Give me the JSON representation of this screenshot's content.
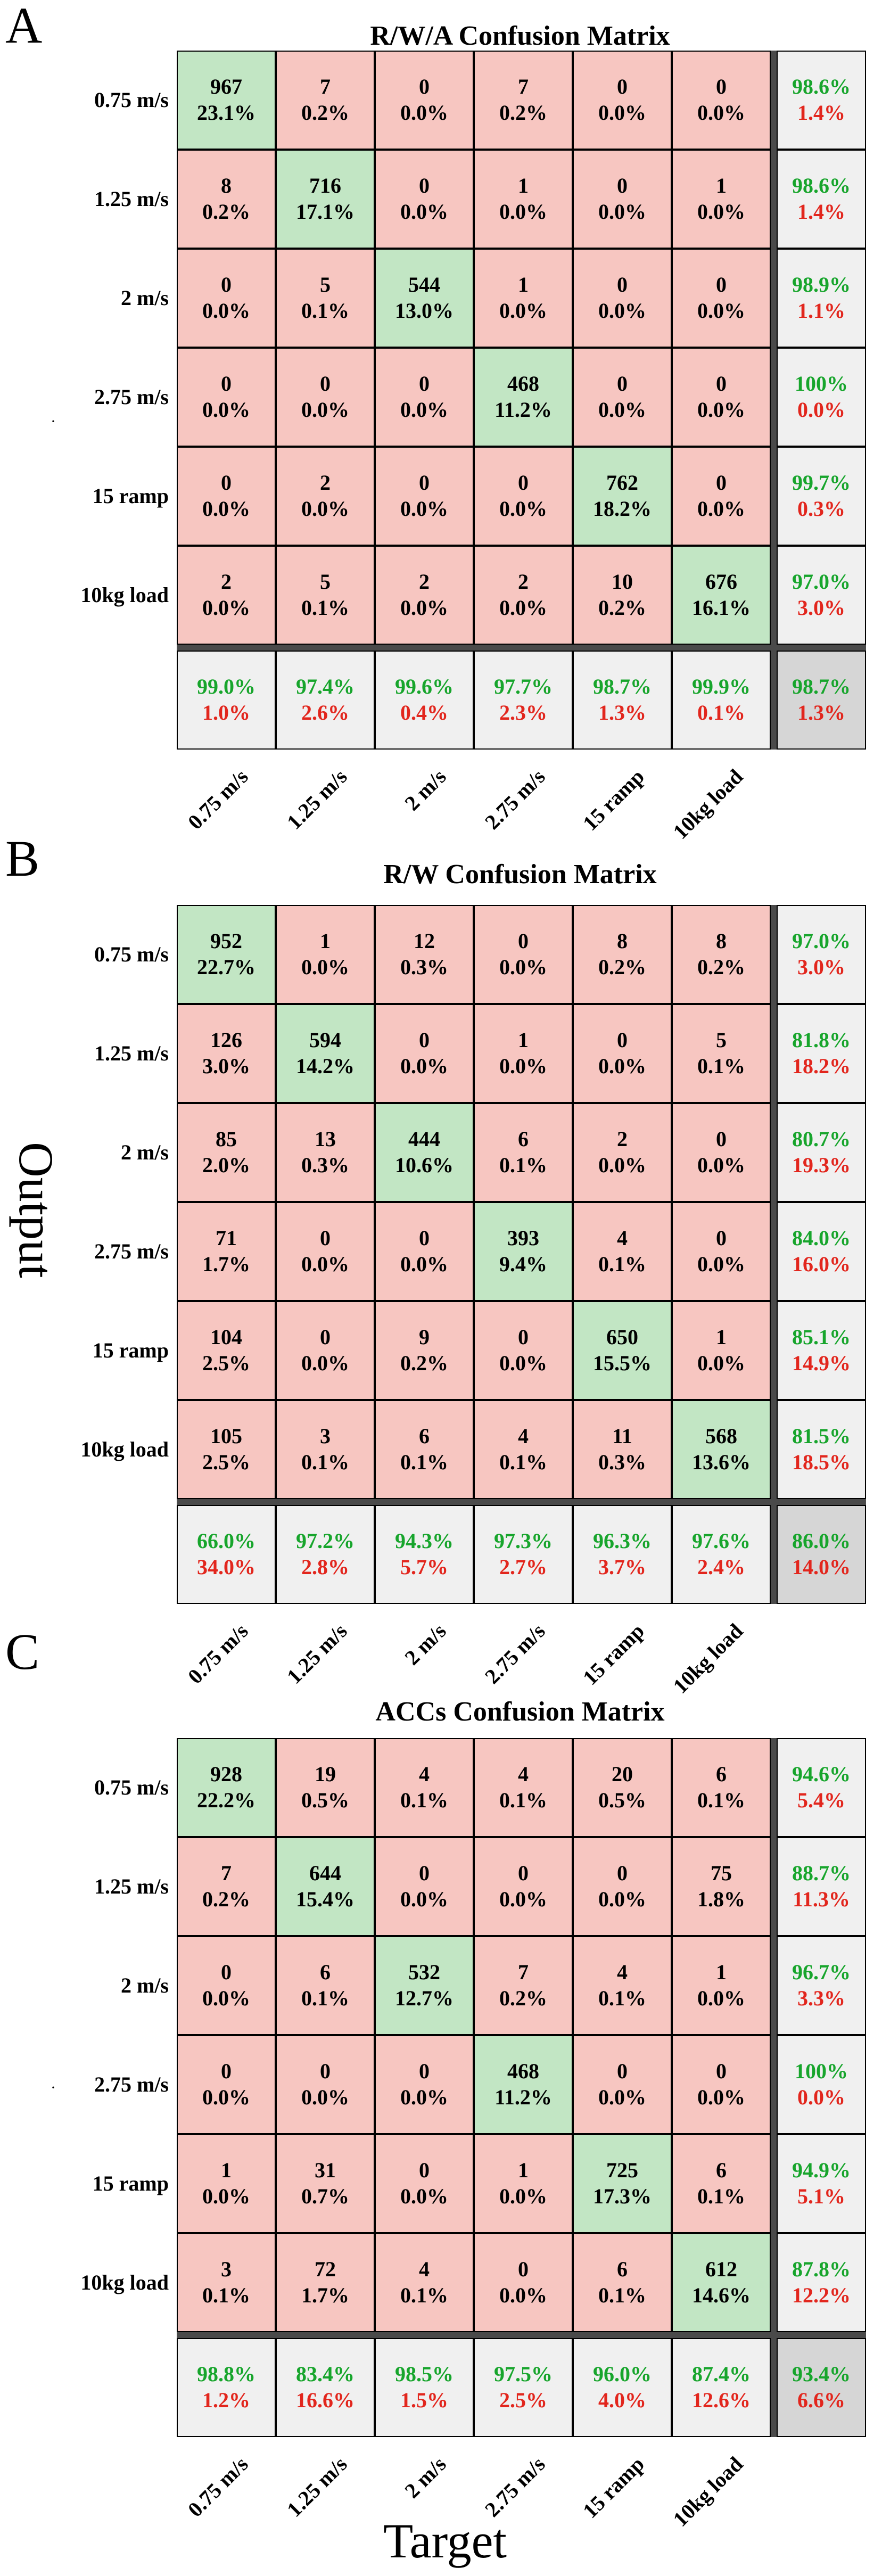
{
  "figure": {
    "axis_output": "Output",
    "axis_target": "Target",
    "tick_mark": "·"
  },
  "chart_data": [
    {
      "type": "heatmap",
      "panel": "A",
      "title": "R/W/A Confusion Matrix",
      "row_labels": [
        "0.75 m/s",
        "1.25 m/s",
        "2 m/s",
        "2.75 m/s",
        "15 ramp",
        "10kg load"
      ],
      "col_labels": [
        "0.75 m/s",
        "1.25 m/s",
        "2 m/s",
        "2.75 m/s",
        "15 ramp",
        "10kg load"
      ],
      "counts": [
        [
          967,
          7,
          0,
          7,
          0,
          0
        ],
        [
          8,
          716,
          0,
          1,
          0,
          1
        ],
        [
          0,
          5,
          544,
          1,
          0,
          0
        ],
        [
          0,
          0,
          0,
          468,
          0,
          0
        ],
        [
          0,
          2,
          0,
          0,
          762,
          0
        ],
        [
          2,
          5,
          2,
          2,
          10,
          676
        ]
      ],
      "percents": [
        [
          "23.1%",
          "0.2%",
          "0.0%",
          "0.2%",
          "0.0%",
          "0.0%"
        ],
        [
          "0.2%",
          "17.1%",
          "0.0%",
          "0.0%",
          "0.0%",
          "0.0%"
        ],
        [
          "0.0%",
          "0.1%",
          "13.0%",
          "0.0%",
          "0.0%",
          "0.0%"
        ],
        [
          "0.0%",
          "0.0%",
          "0.0%",
          "11.2%",
          "0.0%",
          "0.0%"
        ],
        [
          "0.0%",
          "0.0%",
          "0.0%",
          "0.0%",
          "18.2%",
          "0.0%"
        ],
        [
          "0.0%",
          "0.1%",
          "0.0%",
          "0.0%",
          "0.2%",
          "16.1%"
        ]
      ],
      "row_summary": [
        [
          "98.6%",
          "1.4%"
        ],
        [
          "98.6%",
          "1.4%"
        ],
        [
          "98.9%",
          "1.1%"
        ],
        [
          "100%",
          "0.0%"
        ],
        [
          "99.7%",
          "0.3%"
        ],
        [
          "97.0%",
          "3.0%"
        ]
      ],
      "col_summary": [
        [
          "99.0%",
          "1.0%"
        ],
        [
          "97.4%",
          "2.6%"
        ],
        [
          "99.6%",
          "0.4%"
        ],
        [
          "97.7%",
          "2.3%"
        ],
        [
          "98.7%",
          "1.3%"
        ],
        [
          "99.9%",
          "0.1%"
        ]
      ],
      "overall": [
        "98.7%",
        "1.3%"
      ],
      "colors": {
        "correct": "#c2e6c4",
        "wrong": "#f7c6c1",
        "summary": "#f0f0f0",
        "overall": "#d6d6d6",
        "good_text": "#17a52c",
        "bad_text": "#e2261d"
      }
    },
    {
      "type": "heatmap",
      "panel": "B",
      "title": "R/W Confusion Matrix",
      "row_labels": [
        "0.75 m/s",
        "1.25 m/s",
        "2 m/s",
        "2.75 m/s",
        "15 ramp",
        "10kg load"
      ],
      "col_labels": [
        "0.75 m/s",
        "1.25 m/s",
        "2 m/s",
        "2.75 m/s",
        "15 ramp",
        "10kg load"
      ],
      "counts": [
        [
          952,
          1,
          12,
          0,
          8,
          8
        ],
        [
          126,
          594,
          0,
          1,
          0,
          5
        ],
        [
          85,
          13,
          444,
          6,
          2,
          0
        ],
        [
          71,
          0,
          0,
          393,
          4,
          0
        ],
        [
          104,
          0,
          9,
          0,
          650,
          1
        ],
        [
          105,
          3,
          6,
          4,
          11,
          568
        ]
      ],
      "percents": [
        [
          "22.7%",
          "0.0%",
          "0.3%",
          "0.0%",
          "0.2%",
          "0.2%"
        ],
        [
          "3.0%",
          "14.2%",
          "0.0%",
          "0.0%",
          "0.0%",
          "0.1%"
        ],
        [
          "2.0%",
          "0.3%",
          "10.6%",
          "0.1%",
          "0.0%",
          "0.0%"
        ],
        [
          "1.7%",
          "0.0%",
          "0.0%",
          "9.4%",
          "0.1%",
          "0.0%"
        ],
        [
          "2.5%",
          "0.0%",
          "0.2%",
          "0.0%",
          "15.5%",
          "0.0%"
        ],
        [
          "2.5%",
          "0.1%",
          "0.1%",
          "0.1%",
          "0.3%",
          "13.6%"
        ]
      ],
      "row_summary": [
        [
          "97.0%",
          "3.0%"
        ],
        [
          "81.8%",
          "18.2%"
        ],
        [
          "80.7%",
          "19.3%"
        ],
        [
          "84.0%",
          "16.0%"
        ],
        [
          "85.1%",
          "14.9%"
        ],
        [
          "81.5%",
          "18.5%"
        ]
      ],
      "col_summary": [
        [
          "66.0%",
          "34.0%"
        ],
        [
          "97.2%",
          "2.8%"
        ],
        [
          "94.3%",
          "5.7%"
        ],
        [
          "97.3%",
          "2.7%"
        ],
        [
          "96.3%",
          "3.7%"
        ],
        [
          "97.6%",
          "2.4%"
        ]
      ],
      "overall": [
        "86.0%",
        "14.0%"
      ],
      "colors": {
        "correct": "#c2e6c4",
        "wrong": "#f7c6c1",
        "summary": "#f0f0f0",
        "overall": "#d6d6d6",
        "good_text": "#17a52c",
        "bad_text": "#e2261d"
      }
    },
    {
      "type": "heatmap",
      "panel": "C",
      "title": "ACCs Confusion Matrix",
      "row_labels": [
        "0.75 m/s",
        "1.25 m/s",
        "2 m/s",
        "2.75 m/s",
        "15 ramp",
        "10kg load"
      ],
      "col_labels": [
        "0.75 m/s",
        "1.25 m/s",
        "2 m/s",
        "2.75 m/s",
        "15 ramp",
        "10kg load"
      ],
      "counts": [
        [
          928,
          19,
          4,
          4,
          20,
          6
        ],
        [
          7,
          644,
          0,
          0,
          0,
          75
        ],
        [
          0,
          6,
          532,
          7,
          4,
          1
        ],
        [
          0,
          0,
          0,
          468,
          0,
          0
        ],
        [
          1,
          31,
          0,
          1,
          725,
          6
        ],
        [
          3,
          72,
          4,
          0,
          6,
          612
        ]
      ],
      "percents": [
        [
          "22.2%",
          "0.5%",
          "0.1%",
          "0.1%",
          "0.5%",
          "0.1%"
        ],
        [
          "0.2%",
          "15.4%",
          "0.0%",
          "0.0%",
          "0.0%",
          "1.8%"
        ],
        [
          "0.0%",
          "0.1%",
          "12.7%",
          "0.2%",
          "0.1%",
          "0.0%"
        ],
        [
          "0.0%",
          "0.0%",
          "0.0%",
          "11.2%",
          "0.0%",
          "0.0%"
        ],
        [
          "0.0%",
          "0.7%",
          "0.0%",
          "0.0%",
          "17.3%",
          "0.1%"
        ],
        [
          "0.1%",
          "1.7%",
          "0.1%",
          "0.0%",
          "0.1%",
          "14.6%"
        ]
      ],
      "row_summary": [
        [
          "94.6%",
          "5.4%"
        ],
        [
          "88.7%",
          "11.3%"
        ],
        [
          "96.7%",
          "3.3%"
        ],
        [
          "100%",
          "0.0%"
        ],
        [
          "94.9%",
          "5.1%"
        ],
        [
          "87.8%",
          "12.2%"
        ]
      ],
      "col_summary": [
        [
          "98.8%",
          "1.2%"
        ],
        [
          "83.4%",
          "16.6%"
        ],
        [
          "98.5%",
          "1.5%"
        ],
        [
          "97.5%",
          "2.5%"
        ],
        [
          "96.0%",
          "4.0%"
        ],
        [
          "87.4%",
          "12.6%"
        ]
      ],
      "overall": [
        "93.4%",
        "6.6%"
      ],
      "colors": {
        "correct": "#c2e6c4",
        "wrong": "#f7c6c1",
        "summary": "#f0f0f0",
        "overall": "#d6d6d6",
        "good_text": "#17a52c",
        "bad_text": "#e2261d"
      }
    }
  ]
}
